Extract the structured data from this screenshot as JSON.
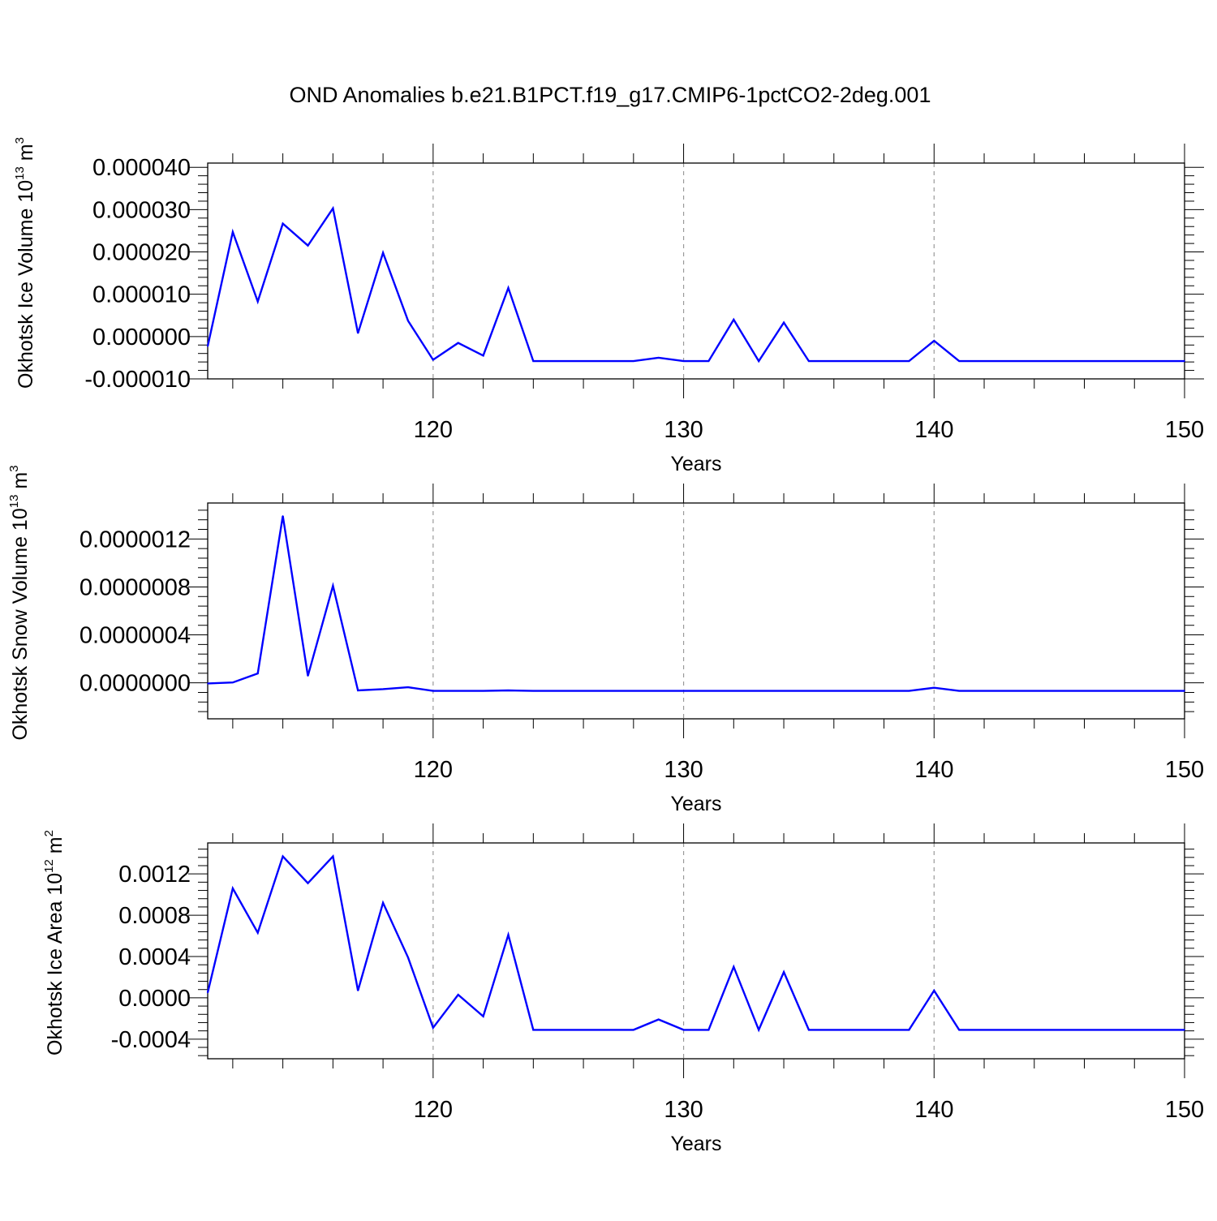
{
  "title": "OND Anomalies b.e21.B1PCT.f19_g17.CMIP6-1pctCO2-2deg.001",
  "colors": {
    "line": "#0000ff",
    "axis": "#000000",
    "grid": "#9a9a9a"
  },
  "chart_data": [
    {
      "type": "line",
      "ylabel_main": "Okhotsk Ice Volume 10",
      "ylabel_exp": "13",
      "ylabel_unit": " m",
      "ylabel_unit_exp": "3",
      "xlabel": "Years",
      "xlim": [
        111,
        150
      ],
      "ylim": [
        -1e-05,
        4.1e-05
      ],
      "yticks": [
        -1e-05,
        0,
        1e-05,
        2e-05,
        3e-05,
        4e-05
      ],
      "ytick_labels": [
        "-0.000010",
        "0.000000",
        "0.000010",
        "0.000020",
        "0.000030",
        "0.000040"
      ],
      "xticks": [
        120,
        130,
        140,
        150
      ],
      "xtick_labels": [
        "120",
        "130",
        "140",
        "150"
      ],
      "grid": "vertical dashed at major x ticks",
      "series": [
        {
          "x": [
            111,
            112,
            113,
            114,
            115,
            116,
            117,
            118,
            119,
            120,
            121,
            122,
            123,
            124,
            125,
            126,
            127,
            128,
            129,
            130,
            131,
            132,
            133,
            134,
            135,
            136,
            137,
            138,
            139,
            140,
            141,
            142,
            143,
            144,
            145,
            146,
            147,
            148,
            149,
            150
          ],
          "values": [
            -2.3e-06,
            2.47e-05,
            8.3e-06,
            2.67e-05,
            2.15e-05,
            3.03e-05,
            8e-07,
            1.98e-05,
            3.7e-06,
            -5.5e-06,
            -1.5e-06,
            -4.5e-06,
            1.15e-05,
            -5.8e-06,
            -5.8e-06,
            -5.8e-06,
            -5.8e-06,
            -5.8e-06,
            -5e-06,
            -5.8e-06,
            -5.8e-06,
            4e-06,
            -5.8e-06,
            3.3e-06,
            -5.8e-06,
            -5.8e-06,
            -5.8e-06,
            -5.8e-06,
            -5.8e-06,
            -1e-06,
            -5.8e-06,
            -5.8e-06,
            -5.8e-06,
            -5.8e-06,
            -5.8e-06,
            -5.8e-06,
            -5.8e-06,
            -5.8e-06,
            -5.8e-06,
            -5.8e-06
          ]
        }
      ]
    },
    {
      "type": "line",
      "ylabel_main": "Okhotsk Snow Volume 10",
      "ylabel_exp": "13",
      "ylabel_unit": " m",
      "ylabel_unit_exp": "3",
      "xlabel": "Years",
      "xlim": [
        111,
        150
      ],
      "ylim": [
        -3e-07,
        1.5e-06
      ],
      "yticks": [
        0,
        4e-07,
        8e-07,
        1.2e-06
      ],
      "ytick_labels": [
        "0.0000000",
        "0.0000004",
        "0.0000008",
        "0.0000012"
      ],
      "xticks": [
        120,
        130,
        140,
        150
      ],
      "xtick_labels": [
        "120",
        "130",
        "140",
        "150"
      ],
      "grid": "vertical dashed at major x ticks",
      "series": [
        {
          "x": [
            111,
            112,
            113,
            114,
            115,
            116,
            117,
            118,
            119,
            120,
            121,
            122,
            123,
            124,
            125,
            126,
            127,
            128,
            129,
            130,
            131,
            132,
            133,
            134,
            135,
            136,
            137,
            138,
            139,
            140,
            141,
            142,
            143,
            144,
            145,
            146,
            147,
            148,
            149,
            150
          ],
          "values": [
            -5e-09,
            3e-09,
            7.8e-08,
            1.392e-06,
            5.8e-08,
            8.09e-07,
            -6.3e-08,
            -5.2e-08,
            -3.7e-08,
            -6.7e-08,
            -6.7e-08,
            -6.7e-08,
            -6.3e-08,
            -6.7e-08,
            -6.7e-08,
            -6.7e-08,
            -6.7e-08,
            -6.7e-08,
            -6.7e-08,
            -6.7e-08,
            -6.7e-08,
            -6.7e-08,
            -6.7e-08,
            -6.7e-08,
            -6.7e-08,
            -6.7e-08,
            -6.7e-08,
            -6.7e-08,
            -6.7e-08,
            -4.1e-08,
            -6.7e-08,
            -6.7e-08,
            -6.7e-08,
            -6.7e-08,
            -6.7e-08,
            -6.7e-08,
            -6.7e-08,
            -6.7e-08,
            -6.7e-08,
            -6.7e-08
          ]
        }
      ]
    },
    {
      "type": "line",
      "ylabel_main": "Okhotsk Ice Area 10",
      "ylabel_exp": "12",
      "ylabel_unit": " m",
      "ylabel_unit_exp": "2",
      "xlabel": "Years",
      "xlim": [
        111,
        150
      ],
      "ylim": [
        -0.00059,
        0.0015
      ],
      "yticks": [
        -0.0004,
        0,
        0.0004,
        0.0008,
        0.0012
      ],
      "ytick_labels": [
        "-0.0004",
        "0.0000",
        "0.0004",
        "0.0008",
        "0.0012"
      ],
      "xticks": [
        120,
        130,
        140,
        150
      ],
      "xtick_labels": [
        "120",
        "130",
        "140",
        "150"
      ],
      "grid": "vertical dashed at major x ticks",
      "series": [
        {
          "x": [
            111,
            112,
            113,
            114,
            115,
            116,
            117,
            118,
            119,
            120,
            121,
            122,
            123,
            124,
            125,
            126,
            127,
            128,
            129,
            130,
            131,
            132,
            133,
            134,
            135,
            136,
            137,
            138,
            139,
            140,
            141,
            142,
            143,
            144,
            145,
            146,
            147,
            148,
            149,
            150
          ],
          "values": [
            5e-05,
            0.00106,
            0.00063,
            0.00137,
            0.00111,
            0.00137,
            7e-05,
            0.00092,
            0.00039,
            -0.00029,
            3e-05,
            -0.00018,
            0.00061,
            -0.00031,
            -0.00031,
            -0.00031,
            -0.00031,
            -0.00031,
            -0.00021,
            -0.00031,
            -0.00031,
            0.0003,
            -0.00031,
            0.00025,
            -0.00031,
            -0.00031,
            -0.00031,
            -0.00031,
            -0.00031,
            7e-05,
            -0.00031,
            -0.00031,
            -0.00031,
            -0.00031,
            -0.00031,
            -0.00031,
            -0.00031,
            -0.00031,
            -0.00031,
            -0.00031
          ]
        }
      ]
    }
  ]
}
